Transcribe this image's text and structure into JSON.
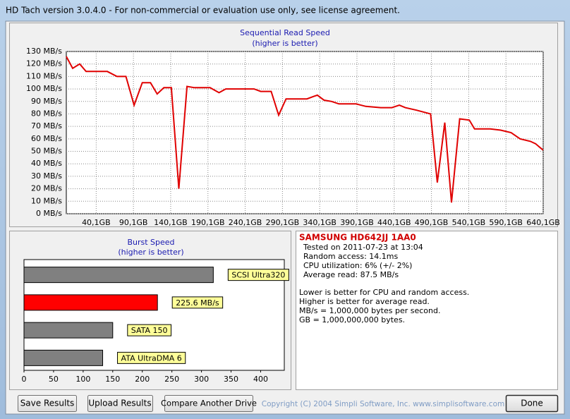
{
  "window": {
    "title": "HD Tach version 3.0.4.0  - For non-commercial or evaluation use only, see license agreement."
  },
  "chart_data": [
    {
      "type": "line",
      "title": "Sequential Read Speed",
      "subtitle": "(higher is better)",
      "color": "#e00000",
      "grid": true,
      "x": [
        0,
        8.5,
        18,
        26.5,
        55,
        68,
        80,
        91,
        102,
        113,
        122,
        131,
        141,
        151,
        162,
        172,
        182,
        193,
        205,
        214,
        252,
        261,
        275,
        285,
        295,
        323,
        332,
        337,
        346,
        356,
        366,
        389,
        402,
        422,
        437,
        447,
        455,
        470,
        489,
        498,
        508,
        517,
        528,
        541,
        548,
        560,
        569,
        583,
        597,
        609,
        623,
        630,
        640
      ],
      "values": [
        126,
        116.5,
        120,
        114,
        114,
        110,
        110,
        87,
        105,
        105,
        96,
        101,
        101,
        20,
        102,
        101,
        101,
        101,
        97,
        100,
        100,
        98,
        98,
        79,
        92,
        92,
        94,
        95,
        91,
        90,
        88,
        88,
        86,
        85,
        85,
        87,
        85,
        83,
        80,
        25,
        73,
        9,
        76,
        75,
        68,
        68,
        68,
        67,
        65,
        60,
        58,
        56,
        51
      ],
      "xlim": [
        0,
        640.1
      ],
      "ylim": [
        0,
        130
      ],
      "xticks": [
        {
          "value": 40.1,
          "label": "40,1GB"
        },
        {
          "value": 90.1,
          "label": "90,1GB"
        },
        {
          "value": 140.1,
          "label": "140,1GB"
        },
        {
          "value": 190.1,
          "label": "190,1GB"
        },
        {
          "value": 240.1,
          "label": "240,1GB"
        },
        {
          "value": 290.1,
          "label": "290,1GB"
        },
        {
          "value": 340.1,
          "label": "340,1GB"
        },
        {
          "value": 390.1,
          "label": "390,1GB"
        },
        {
          "value": 440.1,
          "label": "440,1GB"
        },
        {
          "value": 490.1,
          "label": "490,1GB"
        },
        {
          "value": 540.1,
          "label": "540,1GB"
        },
        {
          "value": 590.1,
          "label": "590,1GB"
        },
        {
          "value": 640.1,
          "label": "640,1GB"
        }
      ],
      "yticks": [
        {
          "value": 0,
          "label": "0 MB/s"
        },
        {
          "value": 10,
          "label": "10 MB/s"
        },
        {
          "value": 20,
          "label": "20 MB/s"
        },
        {
          "value": 30,
          "label": "30 MB/s"
        },
        {
          "value": 40,
          "label": "40 MB/s"
        },
        {
          "value": 50,
          "label": "50 MB/s"
        },
        {
          "value": 60,
          "label": "60 MB/s"
        },
        {
          "value": 70,
          "label": "70 MB/s"
        },
        {
          "value": 80,
          "label": "80 MB/s"
        },
        {
          "value": 90,
          "label": "90 MB/s"
        },
        {
          "value": 100,
          "label": "100 MB/s"
        },
        {
          "value": 110,
          "label": "110 MB/s"
        },
        {
          "value": 120,
          "label": "120 MB/s"
        },
        {
          "value": 130,
          "label": "130 MB/s"
        }
      ]
    },
    {
      "type": "bar",
      "orientation": "horizontal",
      "title": "Burst Speed",
      "subtitle": "(higher is better)",
      "categories": [
        "SCSI Ultra320",
        null,
        "SATA 150",
        "ATA UltraDMA 6"
      ],
      "values": [
        320,
        225.6,
        150,
        133
      ],
      "value_labels": [
        null,
        "225.6 MB/s",
        null,
        null
      ],
      "colors": [
        "#808080",
        "#ff0000",
        "#808080",
        "#808080"
      ],
      "xlim": [
        0,
        440
      ],
      "xticks": [
        0,
        50,
        100,
        150,
        200,
        250,
        300,
        350,
        400
      ]
    }
  ],
  "info": {
    "drive": "SAMSUNG HD642JJ 1AA0",
    "lines": [
      "Tested on 2011-07-23 at 13:04",
      "Random access: 14.1ms",
      "CPU utilization: 6% (+/- 2%)",
      "Average read: 87.5 MB/s"
    ],
    "notes": [
      "Lower is better for CPU and random access.",
      "Higher is better for average read.",
      "MB/s = 1,000,000 bytes per second.",
      "GB = 1,000,000,000 bytes."
    ]
  },
  "buttons": [
    "Save Results",
    "Upload Results",
    "Compare Another Drive",
    "Done"
  ],
  "copyright": "Copyright (C) 2004 Simpli Software, Inc. www.simplisoftware.com"
}
